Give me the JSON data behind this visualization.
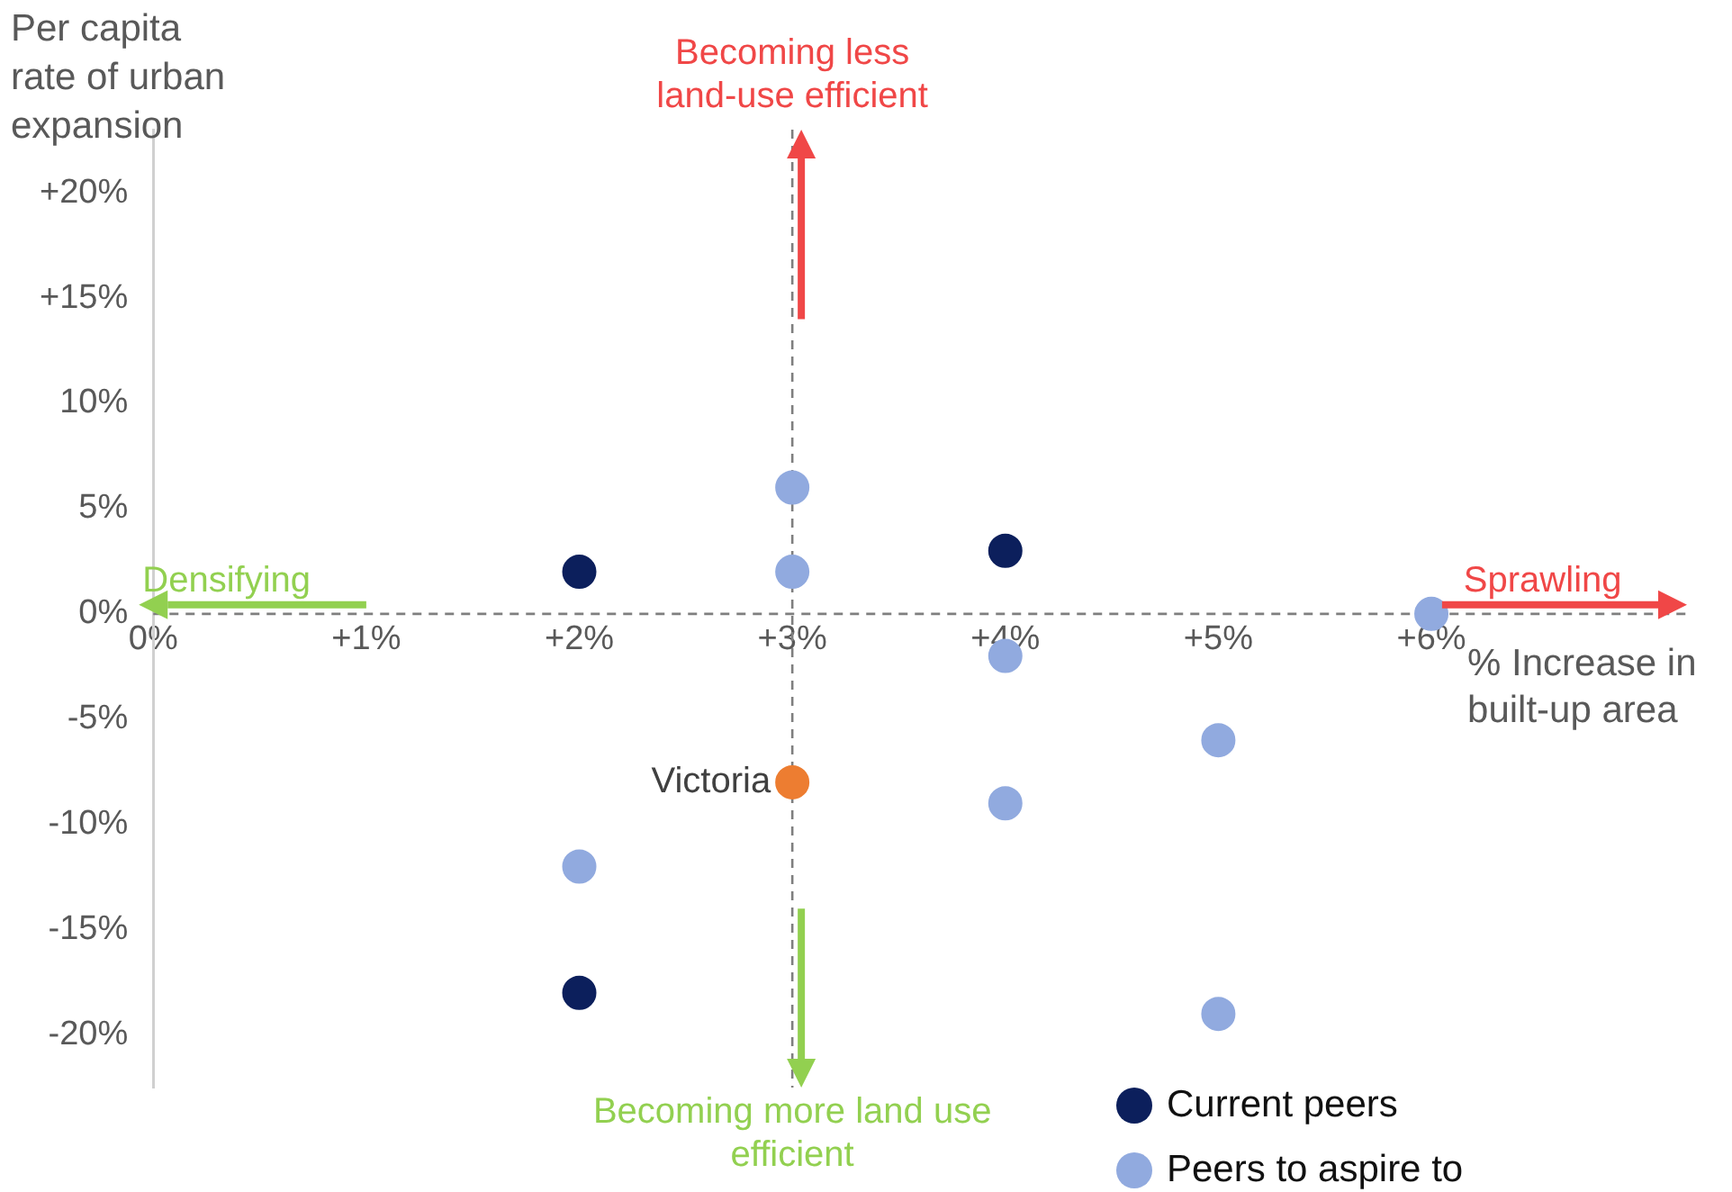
{
  "chart_data": {
    "type": "scatter",
    "ylabel": "Per capita rate of urban expansion",
    "xlabel": "% Increase in built-up area",
    "xlim": [
      0,
      7.2
    ],
    "xticks": [
      {
        "value": 0,
        "label": "0%"
      },
      {
        "value": 1,
        "label": "+1%"
      },
      {
        "value": 2,
        "label": "+2%"
      },
      {
        "value": 3,
        "label": "+3%"
      },
      {
        "value": 4,
        "label": "+4%"
      },
      {
        "value": 5,
        "label": "+5%"
      },
      {
        "value": 6,
        "label": "+6%"
      }
    ],
    "ylim": [
      -22.5,
      23
    ],
    "yticks": [
      {
        "value": 20,
        "label": "+20%"
      },
      {
        "value": 15,
        "label": "+15%"
      },
      {
        "value": 10,
        "label": "10%"
      },
      {
        "value": 5,
        "label": "5%"
      },
      {
        "value": 0,
        "label": "0%"
      },
      {
        "value": -5,
        "label": "-5%"
      },
      {
        "value": -10,
        "label": "-10%"
      },
      {
        "value": -15,
        "label": "-15%"
      },
      {
        "value": -20,
        "label": "-20%"
      }
    ],
    "series": [
      {
        "name": "Current peers",
        "color": "#0c1f5c",
        "x": [
          2,
          4,
          2
        ],
        "values": [
          2,
          3,
          -18
        ]
      },
      {
        "name": "Peers to aspire to",
        "color": "#91aadf",
        "x": [
          3,
          3,
          4,
          6,
          5,
          4,
          2,
          5
        ],
        "values": [
          6,
          2,
          -2,
          0,
          -6,
          -9,
          -12,
          -19
        ]
      },
      {
        "name": "Victoria",
        "color": "#ed7d31",
        "x": [
          3
        ],
        "values": [
          -8
        ]
      }
    ],
    "ref_lines": [
      {
        "axis": "x",
        "value": 3,
        "color": "#7f7f7f",
        "line_style": "dashed"
      },
      {
        "axis": "y",
        "value": 0,
        "color": "#7f7f7f",
        "line_style": "dashed"
      }
    ],
    "annotations": [
      "Becoming less land-use efficient",
      "Becoming more land use efficient",
      "Densifying",
      "Sprawling"
    ],
    "grid": false,
    "marker": "circle",
    "legend": "bottom right"
  }
}
